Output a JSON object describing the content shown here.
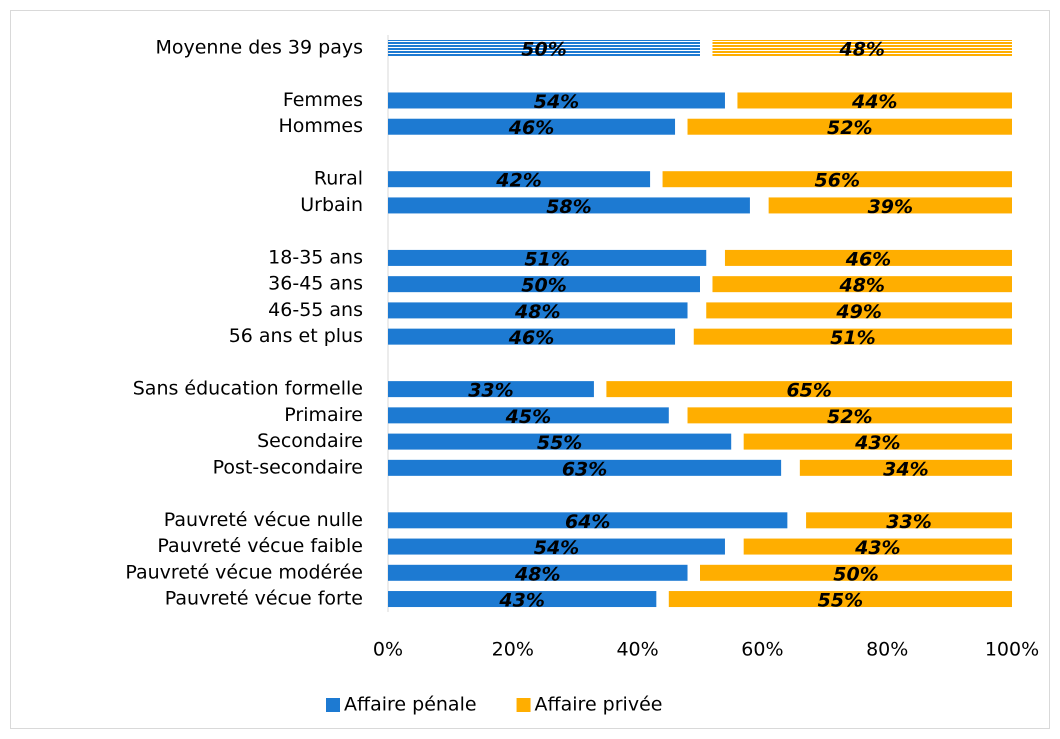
{
  "chart_data": {
    "type": "bar",
    "orientation": "horizontal",
    "categories": [
      "Moyenne des 39 pays",
      null,
      "Femmes",
      "Hommes",
      null,
      "Rural",
      "Urbain",
      null,
      "18-35 ans",
      "36-45 ans",
      "46-55 ans",
      "56 ans et plus",
      null,
      "Sans éducation formelle",
      "Primaire",
      "Secondaire",
      "Post-secondaire",
      null,
      "Pauvreté vécue nulle",
      "Pauvreté vécue faible",
      "Pauvreté vécue modérée",
      "Pauvreté vécue forte"
    ],
    "series": [
      {
        "name": "Affaire pénale",
        "color": "#1d7ad2",
        "anchor": "left",
        "values": [
          50,
          null,
          54,
          46,
          null,
          42,
          58,
          null,
          51,
          50,
          48,
          46,
          null,
          33,
          45,
          55,
          63,
          null,
          64,
          54,
          48,
          43
        ],
        "value_labels": [
          "50%",
          null,
          "54%",
          "46%",
          null,
          "42%",
          "58%",
          null,
          "51%",
          "50%",
          "48%",
          "46%",
          null,
          "33%",
          "45%",
          "55%",
          "63%",
          null,
          "64%",
          "54%",
          "48%",
          "43%"
        ]
      },
      {
        "name": "Affaire privée",
        "color": "#ffae00",
        "anchor": "right",
        "values": [
          48,
          null,
          44,
          52,
          null,
          56,
          39,
          null,
          46,
          48,
          49,
          51,
          null,
          65,
          52,
          43,
          34,
          null,
          33,
          43,
          50,
          55
        ],
        "value_labels": [
          "48%",
          null,
          "44%",
          "52%",
          null,
          "56%",
          "39%",
          null,
          "46%",
          "48%",
          "49%",
          "51%",
          null,
          "65%",
          "52%",
          "43%",
          "34%",
          null,
          "33%",
          "43%",
          "50%",
          "55%"
        ]
      }
    ],
    "hatched": [
      0
    ],
    "xlim": [
      0,
      100
    ],
    "xticks": [
      {
        "value": 0,
        "label": "0%"
      },
      {
        "value": 20,
        "label": "20%"
      },
      {
        "value": 40,
        "label": "40%"
      },
      {
        "value": 60,
        "label": "60%"
      },
      {
        "value": 80,
        "label": "80%"
      },
      {
        "value": 100,
        "label": "100%"
      }
    ],
    "grid": false,
    "legend": "bottom"
  }
}
